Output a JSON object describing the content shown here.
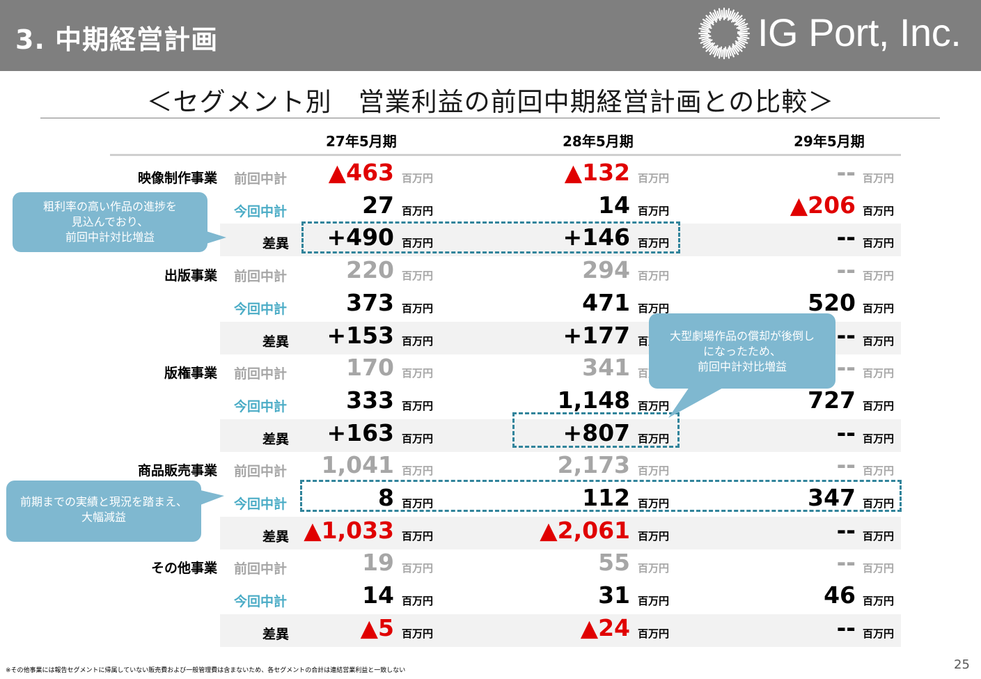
{
  "header": {
    "title": "3. 中期経営計画",
    "logo_text": "IG Port, Inc.",
    "bg_color": "#7f7f7f"
  },
  "subtitle": "＜セグメント別　営業利益の前回中期経営計画との比較＞",
  "columns": [
    "27年5月期",
    "28年5月期",
    "29年5月期"
  ],
  "unit": "百万円",
  "row_labels": {
    "prev": "前回中計",
    "curr": "今回中計",
    "diff": "差異"
  },
  "segments": [
    {
      "name": "映像制作事業",
      "prev": [
        "▲463",
        "▲132",
        "--"
      ],
      "curr": [
        "27",
        "14",
        "▲206"
      ],
      "diff": [
        "+490",
        "+146",
        "--"
      ]
    },
    {
      "name": "出版事業",
      "prev": [
        "220",
        "294",
        "--"
      ],
      "curr": [
        "373",
        "471",
        "520"
      ],
      "diff": [
        "+153",
        "+177",
        "--"
      ]
    },
    {
      "name": "版権事業",
      "prev": [
        "170",
        "341",
        "--"
      ],
      "curr": [
        "333",
        "1,148",
        "727"
      ],
      "diff": [
        "+163",
        "+807",
        "--"
      ]
    },
    {
      "name": "商品販売事業",
      "prev": [
        "1,041",
        "2,173",
        "--"
      ],
      "curr": [
        "8",
        "112",
        "347"
      ],
      "diff": [
        "▲1,033",
        "▲2,061",
        "--"
      ]
    },
    {
      "name": "その他事業",
      "prev": [
        "19",
        "55",
        "--"
      ],
      "curr": [
        "14",
        "31",
        "46"
      ],
      "diff": [
        "▲5",
        "▲24",
        "--"
      ]
    }
  ],
  "callouts": {
    "c1": [
      "粗利率の高い作品の進捗を",
      "見込んでおり、",
      "前回中計対比増益"
    ],
    "c2": [
      "大型劇場作品の償却が後倒し",
      "になったため、",
      "前回中計対比増益"
    ],
    "c3": [
      "前期までの実績と現況を踏まえ、",
      "大幅減益"
    ]
  },
  "colors": {
    "prev": "#a6a6a6",
    "current_label": "#4bacc6",
    "negative": "#e00000",
    "callout_bg": "#7fb8d0",
    "dashed_box": "#31849b"
  },
  "footnote": "※その他事業には報告セグメントに帰属していない販売費および一般管理費は含まないため、各セグメントの合計は連結営業利益と一致しない",
  "page_number": "25"
}
